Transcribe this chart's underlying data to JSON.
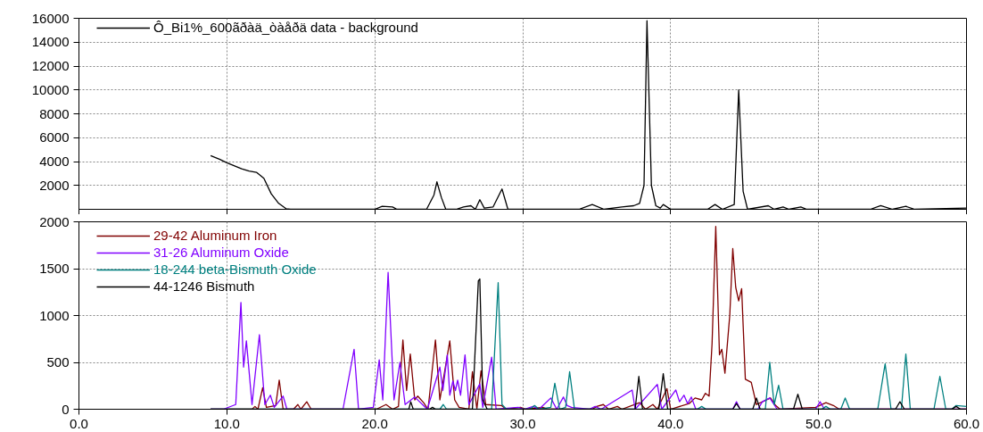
{
  "chart_data": [
    {
      "type": "line",
      "xlim": [
        0,
        60
      ],
      "ylim": [
        0,
        16000
      ],
      "xticks": [
        {
          "value": 0,
          "label": null
        },
        {
          "value": 10,
          "label": null
        },
        {
          "value": 20,
          "label": null
        },
        {
          "value": 30,
          "label": null
        },
        {
          "value": 40,
          "label": null
        },
        {
          "value": 50,
          "label": null
        },
        {
          "value": 60,
          "label": null
        }
      ],
      "yticks": [
        2000,
        4000,
        6000,
        8000,
        10000,
        12000,
        14000,
        16000
      ],
      "tick_labels": "y",
      "grid": true,
      "legend": "top left",
      "series": [
        {
          "name": "Ô_Bi1%_600ãðàä_òàåðä data - background",
          "color": "#000000",
          "x": [
            8.9,
            9.5,
            10.0,
            11.0,
            11.5,
            12.0,
            12.5,
            13.0,
            13.5,
            14.0,
            14.3,
            20.0,
            20.5,
            21.2,
            21.5,
            23.5,
            24.0,
            24.2,
            24.5,
            24.8,
            25.5,
            26.0,
            26.5,
            26.8,
            27.1,
            27.4,
            28.0,
            28.6,
            29.0,
            33.8,
            34.7,
            35.5,
            36.7,
            37.5,
            37.9,
            38.2,
            38.4,
            38.7,
            39.0,
            39.3,
            39.5,
            40.0,
            42.5,
            43.0,
            43.5,
            44.3,
            44.6,
            44.9,
            45.2,
            46.6,
            47.0,
            47.6,
            48.0,
            48.8,
            49.2,
            53.5,
            54.2,
            55.0,
            55.9,
            56.5,
            60.0
          ],
          "values": [
            4500,
            4200,
            3900,
            3400,
            3200,
            3100,
            2600,
            1300,
            500,
            50,
            0,
            0,
            250,
            200,
            0,
            0,
            1200,
            2300,
            1000,
            0,
            0,
            200,
            300,
            0,
            800,
            100,
            200,
            1700,
            0,
            0,
            400,
            0,
            200,
            300,
            500,
            2000,
            15800,
            2000,
            300,
            100,
            400,
            0,
            0,
            400,
            0,
            400,
            10000,
            1500,
            0,
            300,
            0,
            200,
            0,
            200,
            0,
            0,
            300,
            0,
            250,
            0,
            100
          ]
        }
      ]
    },
    {
      "type": "line",
      "xlim": [
        0,
        60
      ],
      "ylim": [
        0,
        2000
      ],
      "xticks": [
        {
          "value": 0,
          "label": "0.0"
        },
        {
          "value": 10,
          "label": "10.0"
        },
        {
          "value": 20,
          "label": "20.0"
        },
        {
          "value": 30,
          "label": "30.0"
        },
        {
          "value": 40,
          "label": "40.0"
        },
        {
          "value": 50,
          "label": "50.0"
        },
        {
          "value": 60,
          "label": "60.0"
        }
      ],
      "yticks": [
        0,
        500,
        1000,
        1500,
        2000
      ],
      "grid": true,
      "legend": "top left",
      "series": [
        {
          "name": "29-42 Aluminum Iron",
          "color": "#800000",
          "x": [
            8.9,
            11.7,
            11.9,
            12.1,
            12.42,
            12.67,
            13.3,
            13.54,
            13.8,
            14.5,
            14.8,
            15.0,
            15.4,
            15.7,
            20.1,
            20.76,
            21.2,
            21.6,
            21.9,
            22.15,
            22.4,
            22.7,
            22.9,
            23.3,
            23.6,
            24.1,
            24.4,
            25.07,
            25.4,
            25.7,
            26.36,
            26.6,
            26.9,
            27.18,
            27.5,
            28.55,
            28.9,
            29.85,
            30.2,
            31.36,
            31.7,
            34.7,
            35.0,
            35.45,
            35.8,
            36.4,
            36.7,
            37.9,
            38.3,
            38.8,
            39.1,
            39.75,
            40.0,
            41.25,
            41.65,
            42.1,
            42.35,
            42.6,
            42.8,
            43.05,
            43.3,
            43.46,
            43.67,
            44.0,
            44.2,
            44.4,
            44.6,
            44.8,
            45.05,
            45.45,
            45.8,
            46.75,
            47.1,
            47.4,
            49.8,
            50.5,
            51.0,
            51.4,
            60.0
          ],
          "values": [
            0,
            0,
            30,
            0,
            230,
            20,
            40,
            310,
            0,
            0,
            50,
            0,
            80,
            0,
            0,
            50,
            0,
            30,
            740,
            200,
            590,
            100,
            140,
            70,
            0,
            740,
            100,
            730,
            100,
            20,
            0,
            400,
            0,
            410,
            50,
            40,
            0,
            20,
            0,
            20,
            0,
            0,
            30,
            50,
            0,
            30,
            0,
            70,
            0,
            50,
            0,
            220,
            0,
            60,
            120,
            100,
            170,
            140,
            700,
            1950,
            580,
            640,
            385,
            1010,
            1715,
            1300,
            1156,
            1286,
            320,
            287,
            50,
            120,
            40,
            0,
            20,
            70,
            40,
            0,
            0
          ]
        },
        {
          "name": "31-26 Aluminum Oxide",
          "color": "#8000ff",
          "x": [
            8.9,
            9.77,
            10.6,
            10.95,
            11.13,
            11.32,
            11.7,
            12.2,
            12.57,
            12.94,
            13.2,
            13.8,
            14.06,
            17.85,
            18.6,
            18.9,
            19.9,
            20.3,
            20.54,
            20.9,
            21.3,
            21.7,
            22.05,
            22.7,
            23.55,
            24.4,
            24.6,
            24.9,
            25.07,
            25.28,
            25.45,
            25.6,
            25.8,
            26.1,
            26.36,
            27.1,
            27.3,
            27.9,
            28.2,
            29.7,
            30.1,
            30.7,
            31.1,
            31.9,
            32.3,
            32.75,
            33.0,
            33.3,
            34.5,
            34.9,
            35.3,
            37.4,
            37.6,
            39.1,
            39.4,
            40.35,
            40.6,
            40.9,
            41.15,
            41.4,
            41.7,
            44.2,
            44.45,
            44.7,
            45.9,
            46.2,
            46.7,
            47.2,
            49.8,
            50.1,
            50.4,
            60.0
          ],
          "values": [
            0,
            0,
            50,
            1140,
            450,
            730,
            50,
            795,
            50,
            150,
            20,
            140,
            0,
            0,
            640,
            0,
            20,
            527,
            100,
            1460,
            100,
            500,
            50,
            130,
            0,
            450,
            200,
            580,
            150,
            300,
            200,
            310,
            150,
            580,
            50,
            270,
            20,
            555,
            0,
            20,
            0,
            30,
            0,
            120,
            0,
            130,
            40,
            20,
            0,
            30,
            0,
            205,
            0,
            265,
            0,
            205,
            80,
            150,
            60,
            130,
            0,
            0,
            80,
            0,
            0,
            80,
            120,
            0,
            0,
            80,
            0,
            0
          ]
        },
        {
          "name": "18-244 beta-Bismuth Oxide",
          "color": "#008080",
          "x": [
            8.9,
            24.4,
            24.63,
            24.85,
            27.9,
            28.34,
            28.6,
            28.9,
            30.5,
            30.8,
            31.1,
            31.9,
            32.17,
            32.5,
            32.9,
            33.17,
            33.5,
            41.8,
            42.1,
            42.4,
            46.4,
            46.7,
            47.0,
            47.3,
            47.6,
            50.2,
            50.5,
            50.8,
            51.5,
            51.8,
            52.1,
            54.0,
            54.5,
            54.9,
            55.6,
            55.9,
            56.2,
            57.8,
            58.2,
            58.6,
            59.0,
            59.3,
            60.0
          ],
          "values": [
            0,
            0,
            50,
            0,
            0,
            1350,
            50,
            0,
            0,
            40,
            0,
            20,
            277,
            0,
            20,
            400,
            0,
            0,
            30,
            0,
            0,
            500,
            50,
            255,
            0,
            0,
            30,
            0,
            0,
            120,
            0,
            0,
            485,
            0,
            0,
            590,
            0,
            0,
            350,
            0,
            0,
            40,
            30
          ]
        },
        {
          "name": "44-1246 Bismuth",
          "color": "#000000",
          "x": [
            8.9,
            22.3,
            22.43,
            22.6,
            23.7,
            23.9,
            24.1,
            26.6,
            27.0,
            27.1,
            27.3,
            27.6,
            37.6,
            37.85,
            38.1,
            39.2,
            39.5,
            39.8,
            44.2,
            44.45,
            44.7,
            45.55,
            45.8,
            46.05,
            48.3,
            48.6,
            48.9,
            55.2,
            55.5,
            55.8,
            59.0,
            59.3,
            59.6,
            60.0
          ],
          "values": [
            0,
            0,
            80,
            0,
            0,
            20,
            0,
            0,
            1370,
            1390,
            100,
            0,
            0,
            350,
            0,
            0,
            380,
            0,
            0,
            60,
            0,
            0,
            120,
            0,
            0,
            160,
            0,
            0,
            80,
            0,
            0,
            30,
            0,
            0
          ]
        }
      ]
    }
  ]
}
